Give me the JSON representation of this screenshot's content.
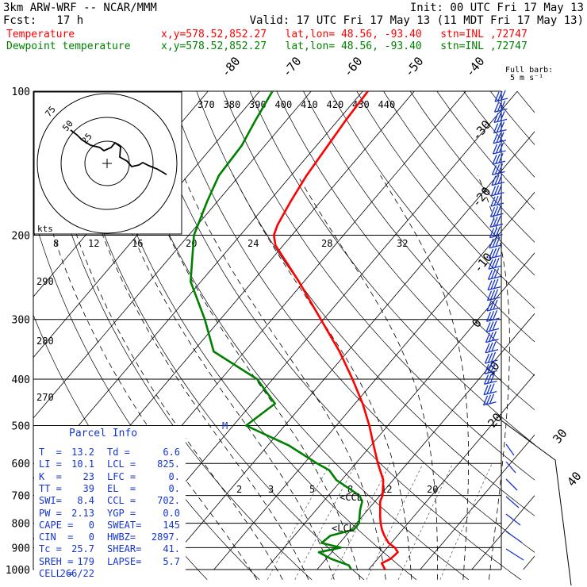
{
  "header": {
    "model": "3km ARW-WRF -- NCAR/MMM",
    "init": "Init: 00 UTC Fri 17 May 13",
    "fcst": "Fcst:   17 h",
    "valid": "Valid: 17 UTC Fri 17 May 13 (11 MDT Fri 17 May 13)"
  },
  "legend": {
    "temperature": {
      "label": "Temperature",
      "info": "x,y=578.52,852.27   lat,lon= 48.56, -93.40   stn=INL ,72747",
      "color": "#ff0000"
    },
    "dewpoint": {
      "label": "Dewpoint temperature",
      "info": "x,y=578.52,852.27   lat,lon= 48.56, -93.40   stn=INL ,72747",
      "color": "#008000"
    }
  },
  "barb_legend": {
    "title": "Full barb:",
    "value": "5 m s⁻¹"
  },
  "hodograph": {
    "unit": "kts",
    "ring_labels": [
      "75",
      "50",
      "25"
    ]
  },
  "parcel_info": {
    "title": "Parcel Info",
    "rows": [
      [
        "T  =",
        "13.2",
        "Td =",
        "6.6"
      ],
      [
        "LI =",
        "10.1",
        "LCL =",
        "825."
      ],
      [
        "K  =",
        "23",
        "LFC =",
        "0."
      ],
      [
        "TT =",
        "39",
        "EL  =",
        "0."
      ],
      [
        "SWI=",
        "8.4",
        "CCL =",
        "702."
      ],
      [
        "PW =",
        "2.13",
        "YGP =",
        "0.0"
      ],
      [
        "CAPE =",
        "0",
        "SWEAT=",
        "145"
      ],
      [
        "CIN  =",
        "0",
        "HWBZ=",
        "2897."
      ],
      [
        "Tc =",
        "25.7",
        "SHEAR=",
        "41."
      ],
      [
        "SREH =",
        "179",
        "LAPSE=",
        "5.7"
      ],
      [
        "CELL =",
        "266/22",
        "",
        ""
      ]
    ]
  },
  "annotations": {
    "ccl": "CCL",
    "lcl": "LCL",
    "m": "M"
  },
  "chart_data": {
    "type": "skew-t",
    "pressure_levels": [
      100,
      200,
      300,
      400,
      500,
      600,
      700,
      800,
      900,
      1000
    ],
    "isotherm_labels": [
      "-80",
      "-70",
      "-60",
      "-50",
      "-40",
      "-30",
      "-20",
      "-10",
      "0",
      "10",
      "20",
      "30",
      "40"
    ],
    "theta_labels": [
      "370",
      "380",
      "390",
      "400",
      "410",
      "420",
      "430",
      "440"
    ],
    "dry_adiabat_labels": [
      "290",
      "280",
      "270"
    ],
    "mixing_ratio_labels_mid": [
      "8",
      "12",
      "16",
      "20",
      "24",
      "28",
      "32"
    ],
    "mixing_ratio_labels_low": [
      "2",
      "3",
      "5",
      "8",
      "12",
      "20"
    ],
    "series": [
      {
        "name": "Temperature",
        "color": "#ff0000",
        "pressure": [
          1000,
          970,
          950,
          920,
          900,
          880,
          850,
          825,
          800,
          775,
          750,
          720,
          700,
          650,
          600,
          550,
          500,
          450,
          400,
          350,
          300,
          250,
          210,
          200,
          190,
          170,
          150,
          130,
          115,
          100
        ],
        "temp_c": [
          13.2,
          11.5,
          12.5,
          12.8,
          11.5,
          9.5,
          7.5,
          6.0,
          4.7,
          3.5,
          2.4,
          1.0,
          0.5,
          -1.9,
          -5.7,
          -9.5,
          -13.6,
          -18.5,
          -24.5,
          -31.6,
          -40.5,
          -51.0,
          -61.5,
          -63.5,
          -64.5,
          -65.8,
          -67.0,
          -67.8,
          -68.5,
          -69.0
        ]
      },
      {
        "name": "Dewpoint temperature",
        "color": "#008000",
        "pressure": [
          1000,
          980,
          950,
          920,
          900,
          880,
          850,
          825,
          800,
          775,
          750,
          720,
          700,
          650,
          620,
          600,
          550,
          500,
          450,
          400,
          350,
          300,
          250,
          200,
          170,
          150,
          130,
          115,
          100
        ],
        "temp_c": [
          6.6,
          5.5,
          1.0,
          -2.5,
          1.0,
          -3.5,
          -3.0,
          0.5,
          0.5,
          -0.5,
          -1.5,
          -2.5,
          -4.0,
          -11.0,
          -14.0,
          -17.5,
          -26.0,
          -37.5,
          -35.5,
          -43.0,
          -56.0,
          -63.0,
          -72.0,
          -79.0,
          -82.0,
          -84.0,
          -84.5,
          -86.0,
          -87.5
        ]
      }
    ],
    "wind_barbs": {
      "speeds_kt": [
        50,
        45,
        40,
        35,
        30
      ],
      "direction_note": "westerly"
    }
  }
}
